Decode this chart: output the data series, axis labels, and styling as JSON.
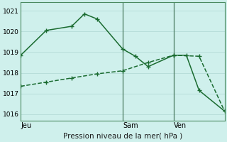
{
  "xlabel": "Pression niveau de la mer( hPa )",
  "background_color": "#cff0ec",
  "grid_color": "#b8deda",
  "line_color": "#1a6b30",
  "ylim": [
    1015.7,
    1021.4
  ],
  "xlim": [
    0,
    16
  ],
  "yticks": [
    1016,
    1017,
    1018,
    1019,
    1020,
    1021
  ],
  "ytick_labels": [
    "1016",
    "1017",
    "1018",
    "1019",
    "1020",
    "1021"
  ],
  "xtick_positions": [
    0,
    8,
    12
  ],
  "xtick_labels": [
    "Jeu",
    "Sam",
    "Ven"
  ],
  "vlines": [
    8,
    12
  ],
  "line1_x": [
    0,
    2,
    4,
    6,
    8,
    10,
    12,
    14,
    16
  ],
  "line1_y": [
    1017.35,
    1017.55,
    1017.75,
    1017.95,
    1018.1,
    1018.5,
    1018.85,
    1018.8,
    1016.15
  ],
  "line2_x": [
    0,
    2,
    4,
    5,
    6,
    8,
    9,
    10,
    12,
    13,
    14,
    16
  ],
  "line2_y": [
    1018.85,
    1020.05,
    1020.25,
    1020.85,
    1020.6,
    1019.15,
    1018.8,
    1018.3,
    1018.85,
    1018.85,
    1017.15,
    1016.15
  ],
  "marker": "+",
  "markersize": 5,
  "linewidth": 1.1,
  "spine_color": "#4a8a60",
  "vline_color": "#4a7a60"
}
